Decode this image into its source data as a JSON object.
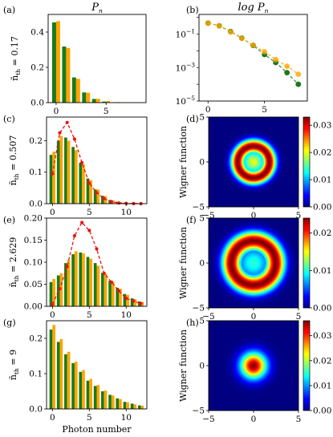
{
  "chart_data": [
    {
      "type": "bar",
      "panel_label": "(a)",
      "title": "P_n",
      "ylabel": "n̄_th = 0.17",
      "xlabel": "",
      "ylim": [
        0,
        0.5
      ],
      "xlim": [
        -0.8,
        9
      ],
      "yticks": [
        "0.0",
        "0.2",
        "0.4"
      ],
      "xticks": [
        [
          "0",
          0
        ],
        [
          "5",
          5
        ]
      ],
      "categories": [
        0,
        1,
        2,
        3,
        4,
        5,
        6,
        7,
        8
      ],
      "series": [
        {
          "color": "#1a7a1a",
          "values": [
            0.455,
            0.318,
            0.143,
            0.058,
            0.021,
            0.006,
            0.002,
            0.0005,
            0.0001
          ]
        },
        {
          "color": "#ffa500",
          "values": [
            0.462,
            0.31,
            0.135,
            0.056,
            0.022,
            0.009,
            0.003,
            0.0012,
            0.0004
          ]
        }
      ]
    },
    {
      "type": "line",
      "panel_label": "(b)",
      "title": "log P_n",
      "ylabel": "",
      "xlabel": "",
      "yscale": "log",
      "ylim": [
        1e-05,
        1.5
      ],
      "xlim": [
        -0.8,
        8.8
      ],
      "yticks": [
        "10^{-1}",
        "10^{-3}",
        "10^{-5}"
      ],
      "xticks": [
        [
          "0",
          0
        ],
        [
          "5",
          5
        ]
      ],
      "series": [
        {
          "color": "#1a7a1a",
          "marker": "circle",
          "x": [
            0,
            1,
            2,
            3,
            4,
            5,
            6,
            7,
            8
          ],
          "values": [
            0.455,
            0.318,
            0.143,
            0.058,
            0.021,
            0.006,
            0.002,
            0.0005,
            0.0001
          ]
        },
        {
          "color": "#ffa500",
          "marker": "circle",
          "x": [
            0,
            1,
            2,
            3,
            4,
            5,
            6,
            7,
            8
          ],
          "values": [
            0.46,
            0.31,
            0.135,
            0.056,
            0.022,
            0.009,
            0.003,
            0.0012,
            0.0004
          ]
        }
      ]
    },
    {
      "type": "bar",
      "panel_label": "(c)",
      "title": "",
      "ylabel": "n̄_th = 0.507",
      "xlabel": "",
      "ylim": [
        0,
        0.275
      ],
      "xlim": [
        -0.8,
        12.8
      ],
      "yticks": [
        "0.0",
        "0.1",
        "0.2"
      ],
      "xticks": [
        [
          "0",
          0
        ],
        [
          "5",
          5
        ],
        [
          "10",
          10
        ]
      ],
      "categories": [
        0,
        1,
        2,
        3,
        4,
        5,
        6,
        7,
        8,
        9,
        10,
        11,
        12
      ],
      "series": [
        {
          "color": "#1a7a1a",
          "values": [
            0.155,
            0.2,
            0.21,
            0.18,
            0.13,
            0.08,
            0.045,
            0.025,
            0.012,
            0.006,
            0.003,
            0.001,
            0.0005
          ]
        },
        {
          "color": "#ffa500",
          "values": [
            0.165,
            0.215,
            0.2,
            0.17,
            0.125,
            0.075,
            0.045,
            0.024,
            0.011,
            0.005,
            0.002,
            0.001,
            0.0004
          ]
        },
        {
          "color": "#ee1111",
          "dashed": true,
          "marker": "circle",
          "values": [
            0.095,
            0.225,
            0.258,
            0.205,
            0.13,
            0.065,
            0.035,
            0.016,
            0.006,
            0.002,
            0.001,
            0.0003,
            0.0001
          ]
        }
      ]
    },
    {
      "type": "heatmap",
      "panel_label": "(d)",
      "ylabel": "Wigner function",
      "xlim": [
        -5,
        5
      ],
      "ylim": [
        -5,
        5
      ],
      "xticks": [
        [
          "−5",
          -5
        ],
        [
          "0",
          0
        ],
        [
          "5",
          5
        ]
      ],
      "yticks": [
        [
          "−5",
          -5
        ],
        [
          "0",
          0
        ],
        [
          "5",
          5
        ]
      ],
      "ring_radius": 1.8,
      "ring_width": 1.05,
      "center_value": 0.02,
      "colorbar_max": 0.033,
      "colorbar_ticks": [
        "0.00",
        "0.01",
        "0.02",
        "0.03"
      ],
      "colorbar_tick_values": [
        0,
        0.01,
        0.02,
        0.03
      ]
    },
    {
      "type": "bar",
      "panel_label": "(e)",
      "title": "",
      "ylabel": "n̄_th = 2.629",
      "xlabel": "",
      "ylim": [
        0,
        0.2
      ],
      "xlim": [
        -0.8,
        12.8
      ],
      "yticks": [
        "0.00",
        "0.05",
        "0.10",
        "0.15",
        "0.20"
      ],
      "xticks": [
        [
          "0",
          0
        ],
        [
          "5",
          5
        ],
        [
          "10",
          10
        ]
      ],
      "categories": [
        0,
        1,
        2,
        3,
        4,
        5,
        6,
        7,
        8,
        9,
        10,
        11,
        12
      ],
      "series": [
        {
          "color": "#1a7a1a",
          "values": [
            0.055,
            0.07,
            0.098,
            0.118,
            0.122,
            0.112,
            0.098,
            0.076,
            0.058,
            0.042,
            0.028,
            0.018,
            0.011
          ]
        },
        {
          "color": "#ffa500",
          "values": [
            0.062,
            0.075,
            0.105,
            0.125,
            0.12,
            0.108,
            0.092,
            0.074,
            0.056,
            0.04,
            0.026,
            0.016,
            0.01
          ]
        },
        {
          "color": "#ee1111",
          "dashed": true,
          "marker": "circle",
          "values": [
            0.005,
            0.04,
            0.09,
            0.16,
            0.19,
            0.172,
            0.13,
            0.075,
            0.055,
            0.035,
            0.018,
            0.012,
            0.006
          ]
        }
      ]
    },
    {
      "type": "heatmap",
      "panel_label": "(f)",
      "ylabel": "Wigner function",
      "xlim": [
        -5,
        5
      ],
      "ylim": [
        -5,
        5
      ],
      "xticks": [
        [
          "−5",
          -5
        ],
        [
          "0",
          0
        ],
        [
          "5",
          5
        ]
      ],
      "yticks": [
        [
          "−5",
          -5
        ],
        [
          "0",
          0
        ],
        [
          "5",
          5
        ]
      ],
      "ring_radius": 2.5,
      "ring_width": 1.45,
      "center_value": 0.01,
      "colorbar_max": 0.024,
      "colorbar_ticks": [
        "0.00",
        "0.01",
        "0.02"
      ],
      "colorbar_tick_values": [
        0,
        0.01,
        0.02
      ]
    },
    {
      "type": "bar",
      "panel_label": "(g)",
      "title": "",
      "ylabel": "n̄_th = 9",
      "xlabel": "Photon number",
      "ylim": [
        0,
        0.25
      ],
      "xlim": [
        -0.8,
        12.8
      ],
      "yticks": [
        "0.0",
        "0.1",
        "0.2"
      ],
      "xticks": [
        [
          "0",
          0
        ],
        [
          "5",
          5
        ],
        [
          "10",
          10
        ]
      ],
      "categories": [
        0,
        1,
        2,
        3,
        4,
        5,
        6,
        7,
        8,
        9,
        10,
        11,
        12
      ],
      "series": [
        {
          "color": "#1a7a1a",
          "values": [
            0.225,
            0.19,
            0.155,
            0.13,
            0.105,
            0.08,
            0.065,
            0.05,
            0.04,
            0.03,
            0.02,
            0.015,
            0.01
          ]
        },
        {
          "color": "#ffa500",
          "values": [
            0.238,
            0.198,
            0.162,
            0.134,
            0.11,
            0.085,
            0.068,
            0.052,
            0.038,
            0.028,
            0.019,
            0.013,
            0.009
          ]
        }
      ]
    },
    {
      "type": "heatmap",
      "panel_label": "(h)",
      "ylabel": "Wigner function",
      "xlim": [
        -5,
        5
      ],
      "ylim": [
        -5,
        5
      ],
      "xticks": [
        [
          "−5",
          -5
        ],
        [
          "0",
          0
        ],
        [
          "5",
          5
        ]
      ],
      "yticks": [
        [
          "−5",
          -5
        ],
        [
          "0",
          0
        ],
        [
          "5",
          5
        ]
      ],
      "gaussian_sigma": 2.25,
      "colorbar_max": 0.036,
      "colorbar_ticks": [
        "0.00",
        "0.01",
        "0.02",
        "0.03"
      ],
      "colorbar_tick_values": [
        0,
        0.01,
        0.02,
        0.03
      ]
    }
  ]
}
